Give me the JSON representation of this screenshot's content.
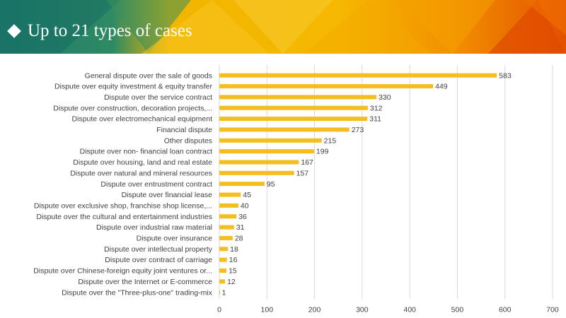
{
  "header": {
    "title": "Up to 21 types of cases",
    "bullet_icon": "diamond-icon",
    "colors": [
      "#1b7a6e",
      "#f5b400",
      "#f07d00",
      "#e45100"
    ]
  },
  "chart_data": {
    "type": "bar",
    "orientation": "horizontal",
    "title": "",
    "xlabel": "",
    "ylabel": "",
    "xlim": [
      0,
      700
    ],
    "x_ticks": [
      0,
      100,
      200,
      300,
      400,
      500,
      600,
      700
    ],
    "bar_color": "#f5bd1f",
    "grid": true,
    "categories": [
      "General dispute over the sale of goods",
      "Dispute over equity investment & equity transfer",
      "Dispute over the service contract",
      "Dispute over construction, decoration projects,...",
      "Dispute over electromechanical equipment",
      "Financial dispute",
      "Other disputes",
      "Dispute over non- financial loan contract",
      "Dispute over housing, land and real estate",
      "Dispute over natural and mineral resources",
      "Dispute over entrustment contract",
      "Dispute over financial lease",
      "Dispute over exclusive shop, franchise shop license,...",
      "Dispute over the cultural and entertainment industries",
      "Dispute over industrial raw material",
      "Dispute over insurance",
      "Dispute over intellectual property",
      "Dispute over contract of carriage",
      "Dispute over Chinese-foreign equity joint ventures or...",
      "Dispute over the Internet or E-commerce",
      "Dispute over the \"Three-plus-one\" trading-mix"
    ],
    "values": [
      583,
      449,
      330,
      312,
      311,
      273,
      215,
      199,
      167,
      157,
      95,
      45,
      40,
      36,
      31,
      28,
      18,
      16,
      15,
      12,
      1
    ]
  }
}
